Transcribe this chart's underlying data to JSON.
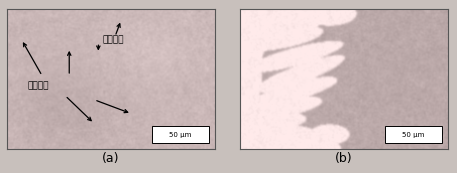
{
  "fig_width": 4.57,
  "fig_height": 1.73,
  "dpi": 100,
  "fig_facecolor": "#c8c0bc",
  "left_panel": {
    "label": "(a)",
    "scale_text": "50 μm",
    "text_初始晶粒": "初始晶粒",
    "text_再结晶品": "再结晶品",
    "noise_seed": 42
  },
  "right_panel": {
    "label": "(b)",
    "scale_text": "50 μm",
    "noise_seed": 7
  },
  "label_fontsize": 9,
  "annotation_fontsize": 6.5,
  "scale_fontsize": 5.0
}
